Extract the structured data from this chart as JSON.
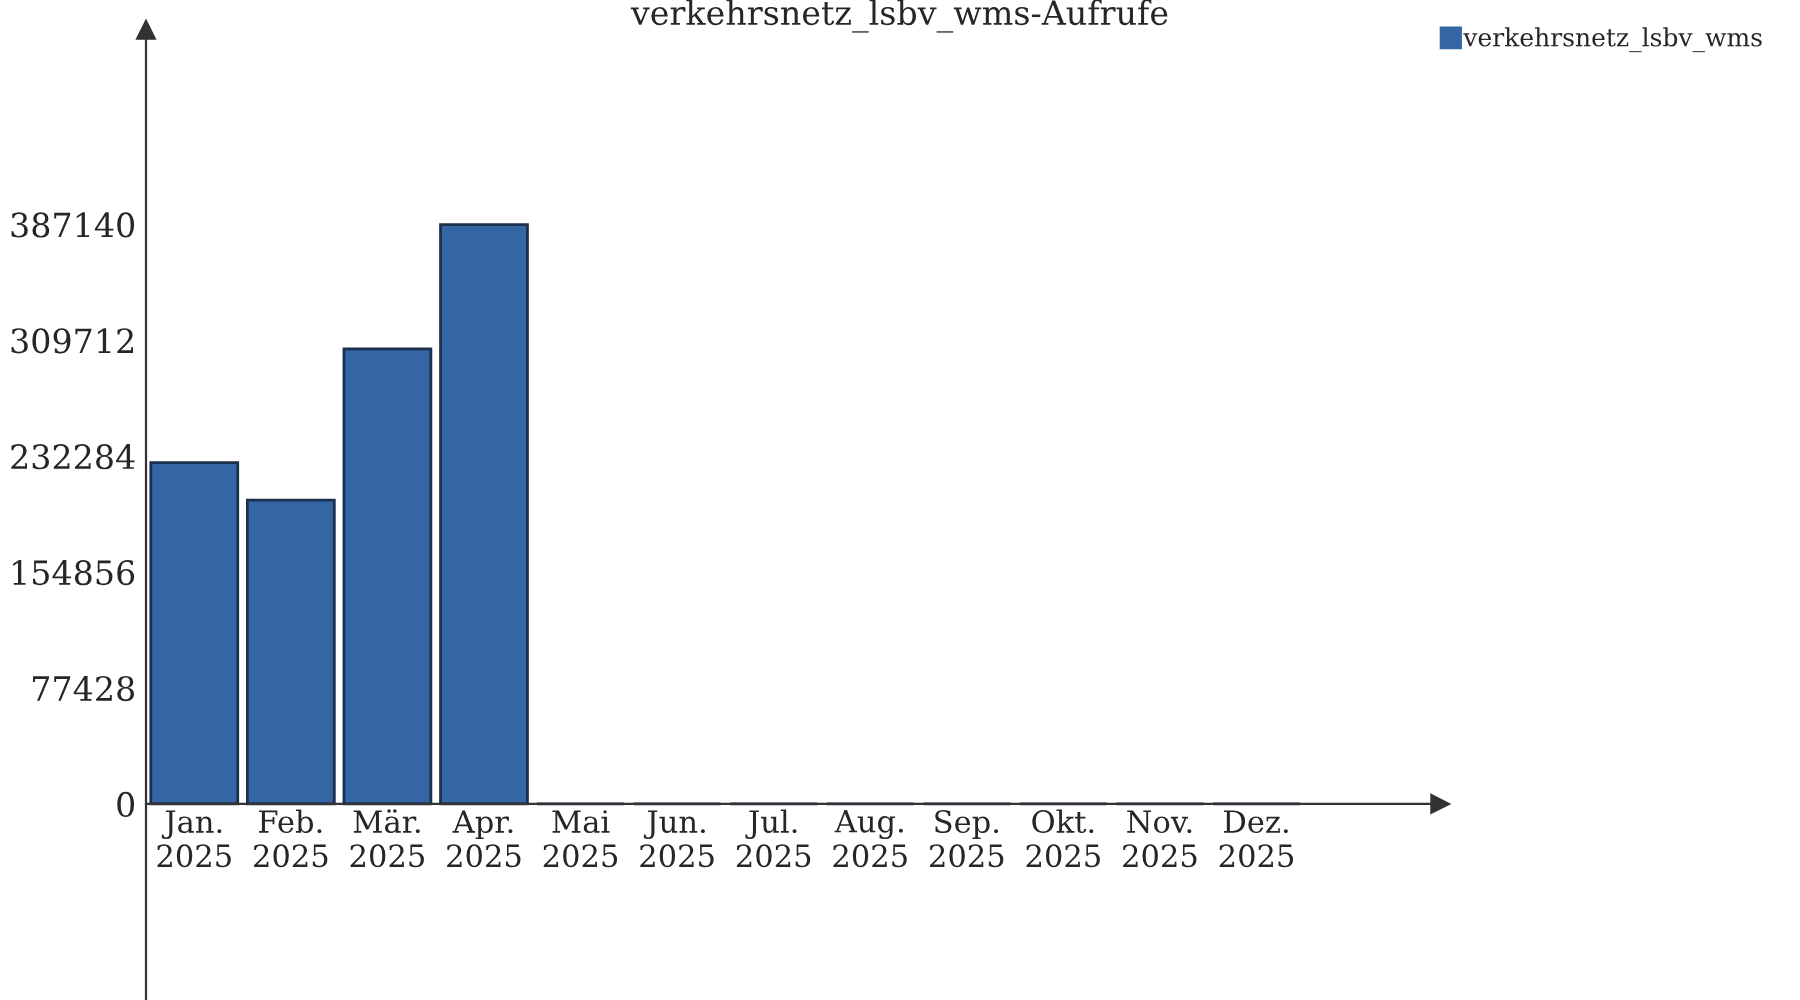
{
  "chart_data": {
    "type": "bar",
    "title": "verkehrsnetz_lsbv_wms-Aufrufe",
    "categories": [
      "Jan.\n2025",
      "Feb.\n2025",
      "Mär.\n2025",
      "Apr.\n2025",
      "Mai\n2025",
      "Jun.\n2025",
      "Jul.\n2025",
      "Aug.\n2025",
      "Sep.\n2025",
      "Okt.\n2025",
      "Nov.\n2025",
      "Dez.\n2025"
    ],
    "series": [
      {
        "name": "verkehrsnetz_lsbv_wms",
        "color": "#3465a4",
        "values": [
          228000,
          203000,
          304000,
          387000,
          0,
          0,
          0,
          0,
          0,
          0,
          0,
          0
        ]
      }
    ],
    "ylim": [
      -131000,
      517000
    ],
    "yticks": [
      0,
      77428,
      154856,
      232284,
      309712,
      387140
    ],
    "legend": "top right"
  }
}
